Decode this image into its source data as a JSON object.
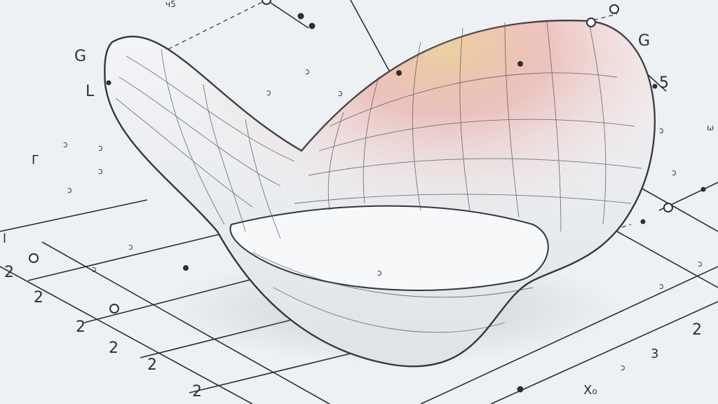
{
  "labels": {
    "top_left_g": "G",
    "left_l": "L",
    "far_left_l": "l",
    "left_glyph": "Γ",
    "top_right_g": "G",
    "right_five": "5",
    "left_twos": [
      "2",
      "2",
      "2",
      "2",
      "2",
      "2"
    ],
    "right_two": "2",
    "right_three": "3",
    "bottom_x": "X₀",
    "top_mark": "ч5",
    "right_edge": "ω",
    "small_marks": [
      "ɔ",
      "ɔ",
      "ɔ",
      "ɔ",
      "ɔ",
      "ɔ",
      "ɔ",
      "ɔ",
      "ɔ",
      "ɔ",
      "ɔ",
      "ɔ",
      "ɔ",
      "ɔ",
      "ɔ"
    ]
  },
  "colors": {
    "background": "#eef1f4",
    "grid": "#2a2f38",
    "surface_outline": "#33373f",
    "mesh": "#4a505a",
    "highlight_warm": "#e36a5a",
    "highlight_gold": "#e8b45a"
  }
}
